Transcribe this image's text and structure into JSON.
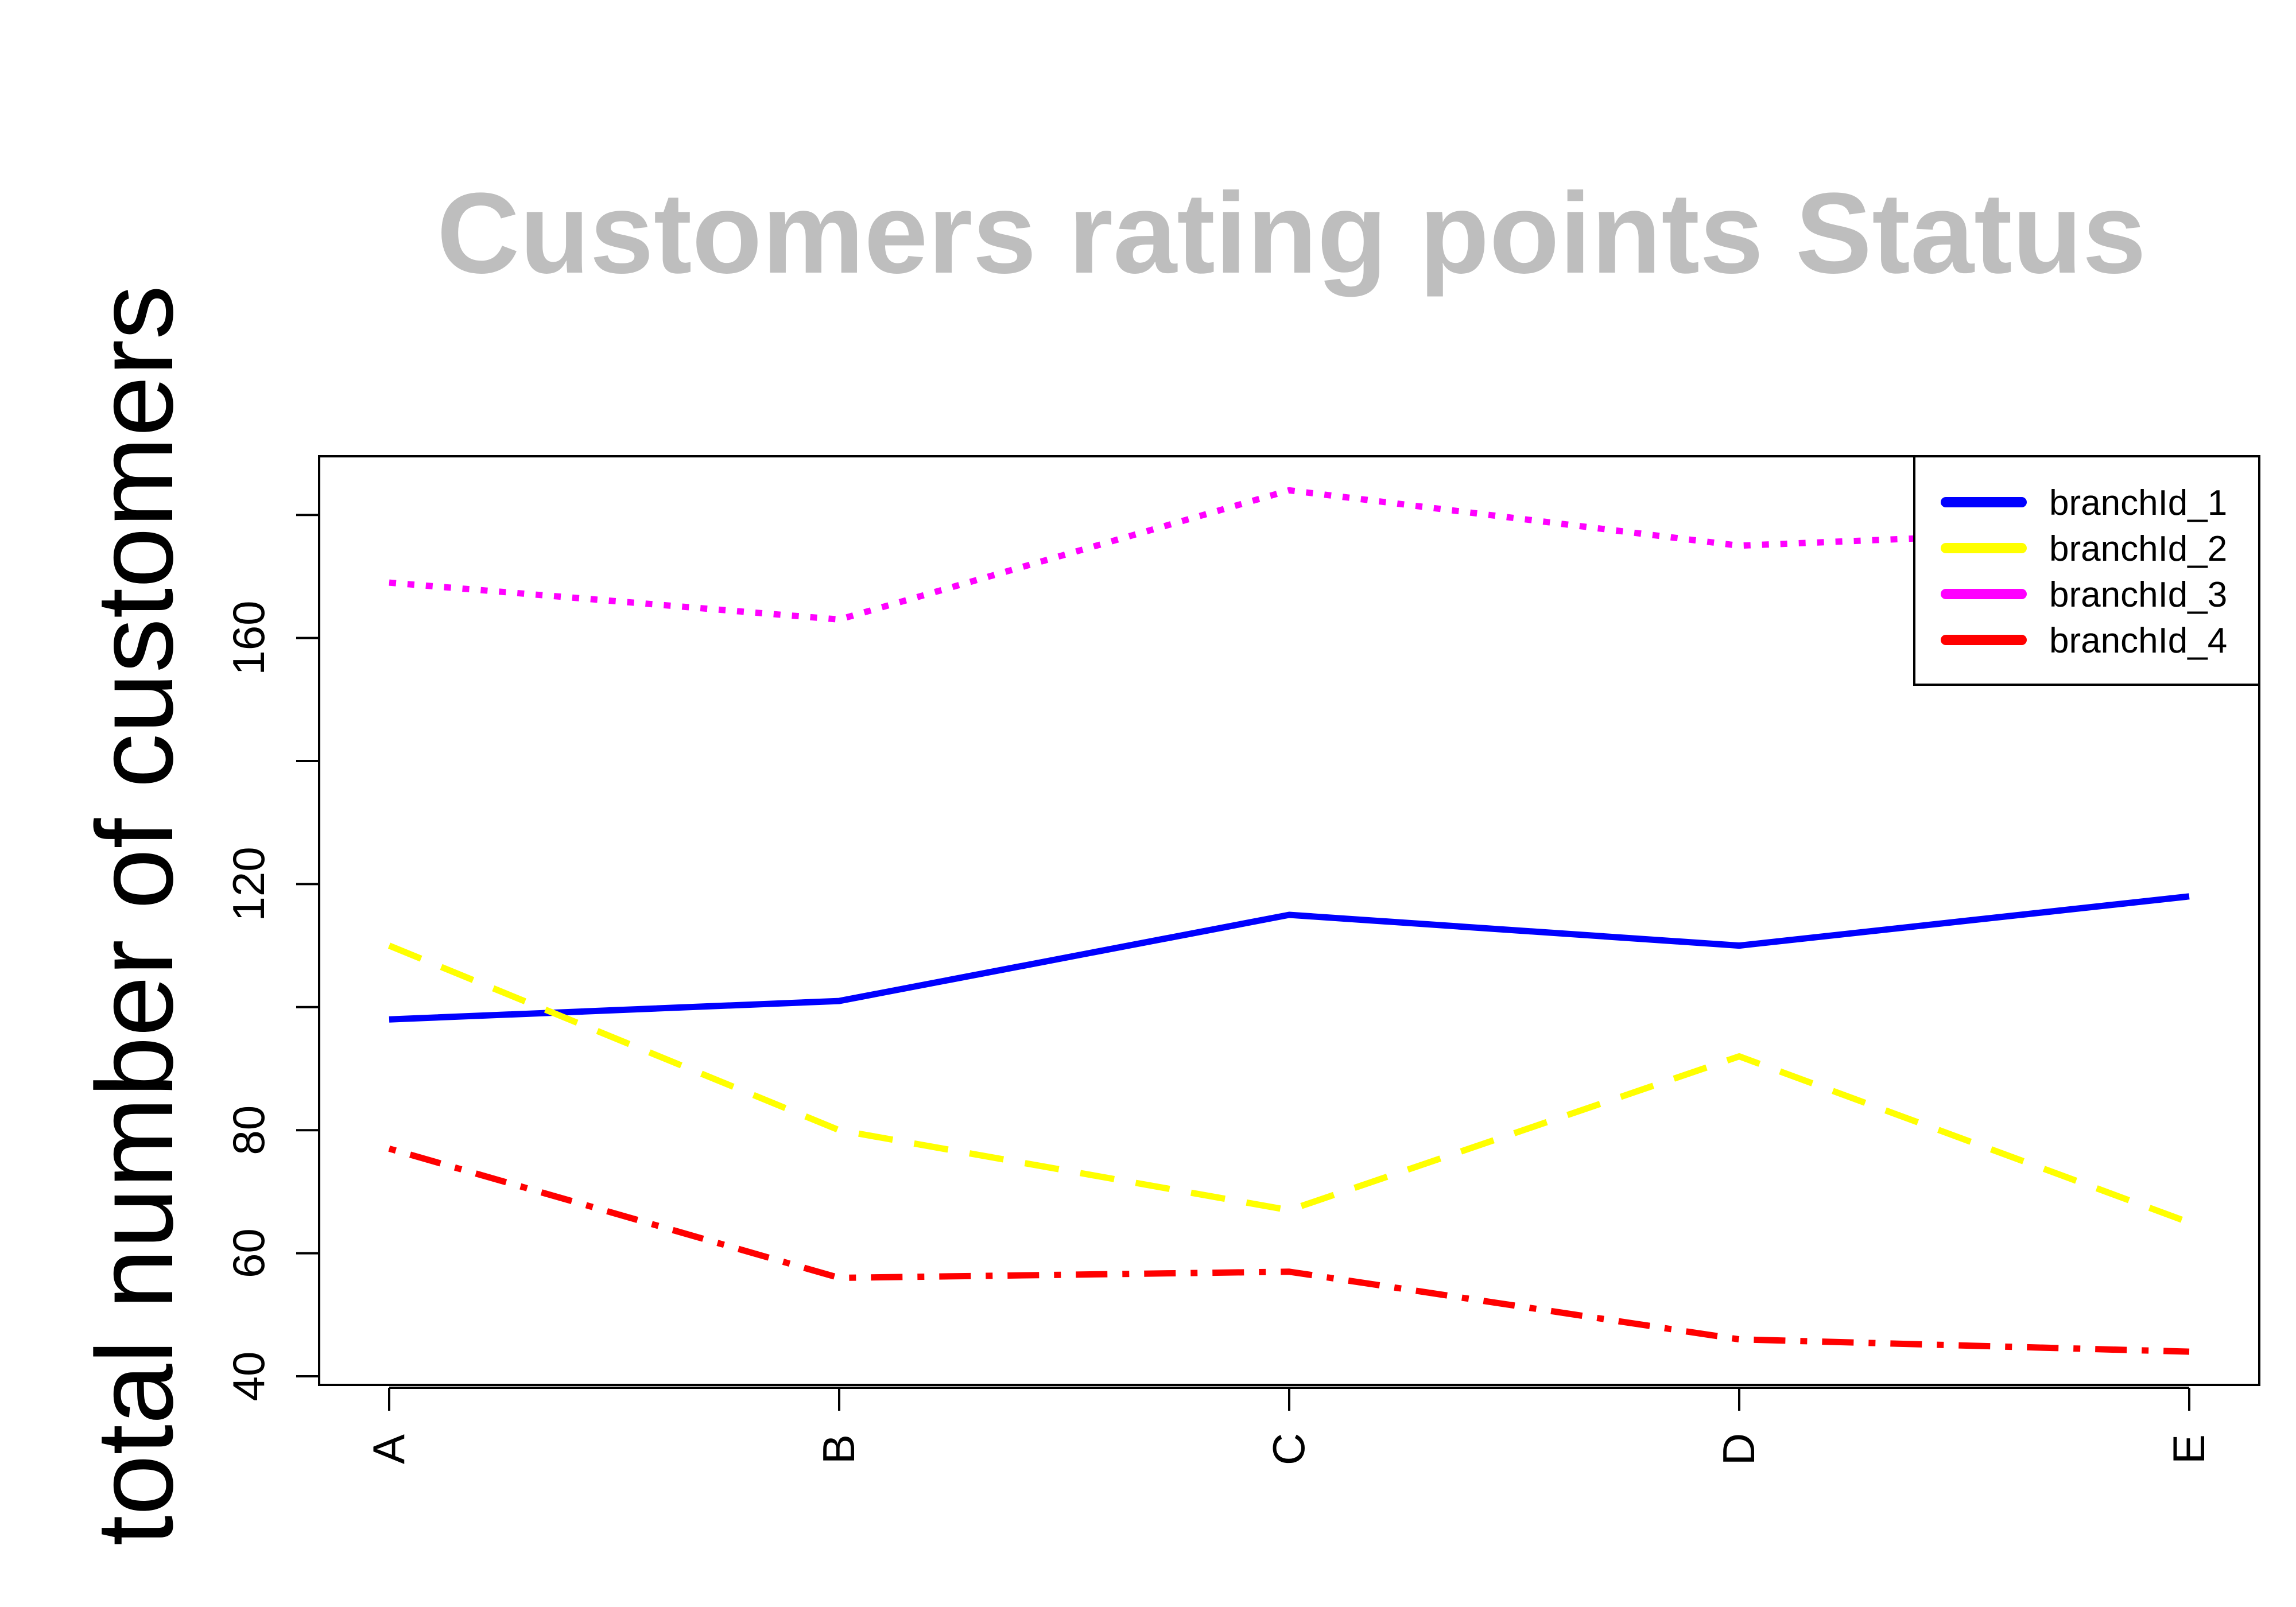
{
  "chart_data": {
    "type": "line",
    "title": "Customers rating points Status",
    "title_color": "#bebebe",
    "xlabel": "",
    "ylabel": "total number of customers",
    "categories": [
      "A",
      "B",
      "C",
      "D",
      "E"
    ],
    "ylim": [
      40,
      180
    ],
    "yticks": [
      40,
      60,
      80,
      120,
      160
    ],
    "grid": false,
    "legend_position": "top-right",
    "series": [
      {
        "name": "branchId_1",
        "color": "#0000ff",
        "linestyle": "solid",
        "values": [
          98,
          101,
          115,
          110,
          118
        ]
      },
      {
        "name": "branchId_2",
        "color": "#ffff00",
        "linestyle": "dashed",
        "values": [
          110,
          80,
          67,
          92,
          65
        ]
      },
      {
        "name": "branchId_3",
        "color": "#ff00ff",
        "linestyle": "dotted",
        "values": [
          169,
          163,
          184,
          175,
          178
        ]
      },
      {
        "name": "branchId_4",
        "color": "#ff0000",
        "linestyle": "dotdash",
        "values": [
          77,
          56,
          57,
          46,
          44
        ]
      }
    ]
  }
}
